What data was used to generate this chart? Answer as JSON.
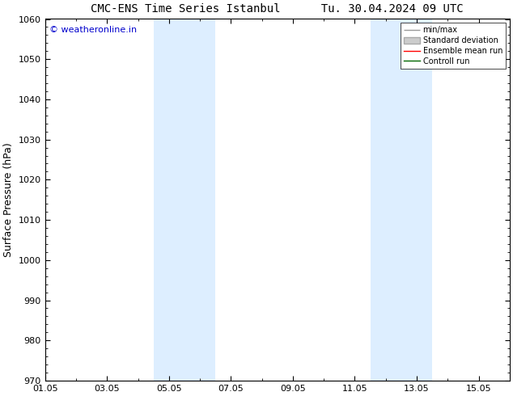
{
  "title": "CMC-ENS Time Series Istanbul      Tu. 30.04.2024 09 UTC",
  "ylabel": "Surface Pressure (hPa)",
  "ylim": [
    970,
    1060
  ],
  "yticks": [
    970,
    980,
    990,
    1000,
    1010,
    1020,
    1030,
    1040,
    1050,
    1060
  ],
  "xtick_labels": [
    "01.05",
    "03.05",
    "05.05",
    "07.05",
    "09.05",
    "11.05",
    "13.05",
    "15.05"
  ],
  "xtick_positions": [
    0,
    2,
    4,
    6,
    8,
    10,
    12,
    14
  ],
  "xlim": [
    0,
    15
  ],
  "shaded_regions": [
    {
      "x_start": 3.5,
      "x_end": 4.5,
      "color": "#ddeeff"
    },
    {
      "x_start": 4.5,
      "x_end": 5.5,
      "color": "#ddeeff"
    },
    {
      "x_start": 10.5,
      "x_end": 11.5,
      "color": "#ddeeff"
    },
    {
      "x_start": 11.5,
      "x_end": 12.5,
      "color": "#ddeeff"
    }
  ],
  "watermark_text": "© weatheronline.in",
  "watermark_color": "#0000cc",
  "watermark_fontsize": 8,
  "background_color": "#ffffff",
  "legend_items": [
    {
      "label": "min/max",
      "color": "#999999",
      "lw": 1.0
    },
    {
      "label": "Standard deviation",
      "facecolor": "#cccccc",
      "edgecolor": "#aaaaaa"
    },
    {
      "label": "Ensemble mean run",
      "color": "#ff0000",
      "lw": 1.0
    },
    {
      "label": "Controll run",
      "color": "#006600",
      "lw": 1.0
    }
  ],
  "title_fontsize": 10,
  "tick_fontsize": 8,
  "ylabel_fontsize": 9,
  "legend_fontsize": 7
}
